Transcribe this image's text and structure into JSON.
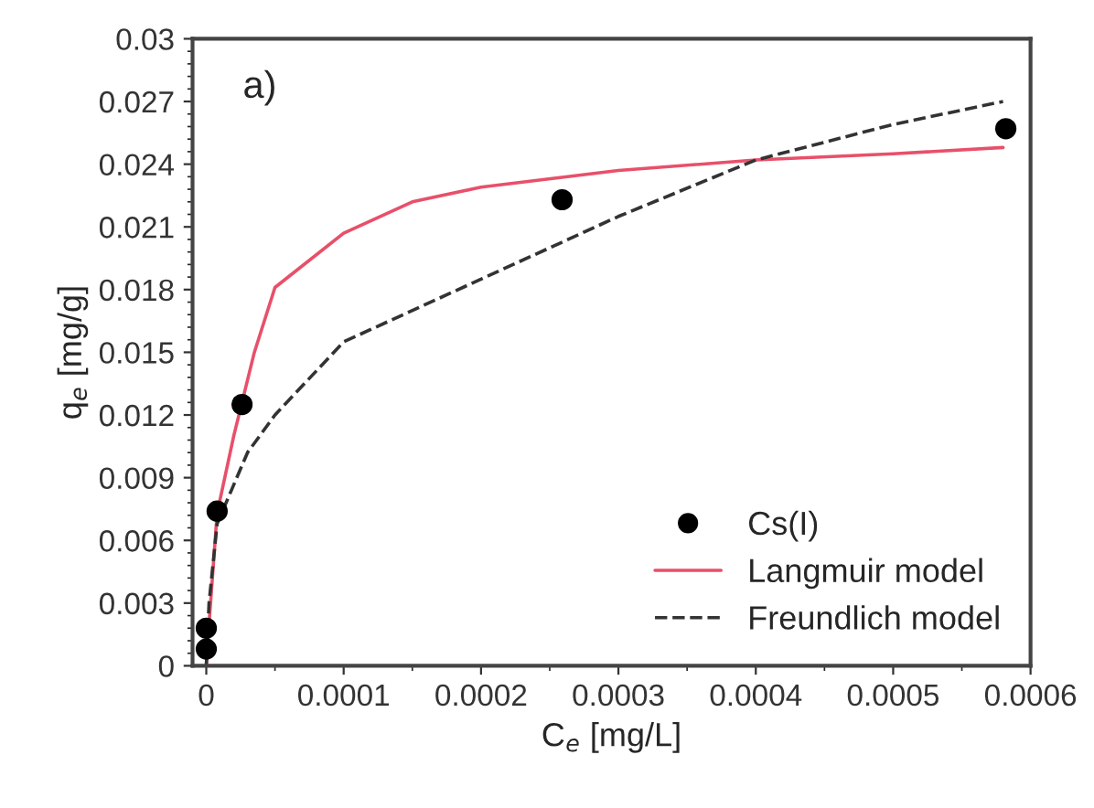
{
  "chart_data": {
    "type": "scatter",
    "xlabel": "C$_{e}$ [mg/L]",
    "ylabel": "q$_{e}$ [mg/g]",
    "annotations": [
      "a)"
    ],
    "xlim": [
      -1e-05,
      0.0006
    ],
    "xticks": [
      0,
      0.0001,
      0.0002,
      0.0003,
      0.0004,
      0.0005,
      0.0006
    ],
    "ylim": [
      0,
      0.03
    ],
    "yticks": [
      0,
      0.003,
      0.006,
      0.009,
      0.012,
      0.015,
      0.018,
      0.021,
      0.024,
      0.027,
      0.03
    ],
    "grid": false,
    "legend": "bottom right",
    "series": [
      {
        "name": "Cs(I)",
        "marker": "circle",
        "color": "#000000",
        "x": [
          0,
          0,
          7.9e-06,
          2.6e-05,
          0.000259,
          0.000582
        ],
        "values": [
          0.0008,
          0.0018,
          0.0074,
          0.0125,
          0.0223,
          0.0257
        ]
      },
      {
        "name": "Langmuir model",
        "type": "line",
        "marker": "none",
        "line_style": "solid",
        "color": "#e8506a",
        "x": [
          0,
          2e-06,
          7.9e-06,
          2e-05,
          3.5e-05,
          5e-05,
          0.0001,
          0.00015,
          0.0002,
          0.0003,
          0.0004,
          0.0005,
          0.00058
        ],
        "values": [
          0,
          0.002,
          0.0073,
          0.011,
          0.015,
          0.0181,
          0.0207,
          0.0222,
          0.0229,
          0.0237,
          0.0242,
          0.0245,
          0.0248
        ]
      },
      {
        "name": "Freundlich model",
        "type": "line",
        "marker": "none",
        "line_style": "dashed",
        "color": "#333333",
        "x": [
          0,
          2e-06,
          7.9e-06,
          3e-05,
          5e-05,
          0.0001,
          0.0002,
          0.0003,
          0.0004,
          0.0005,
          0.00058
        ],
        "values": [
          0,
          0.003,
          0.0068,
          0.0102,
          0.012,
          0.0155,
          0.0185,
          0.0215,
          0.0242,
          0.0259,
          0.027
        ]
      }
    ]
  }
}
